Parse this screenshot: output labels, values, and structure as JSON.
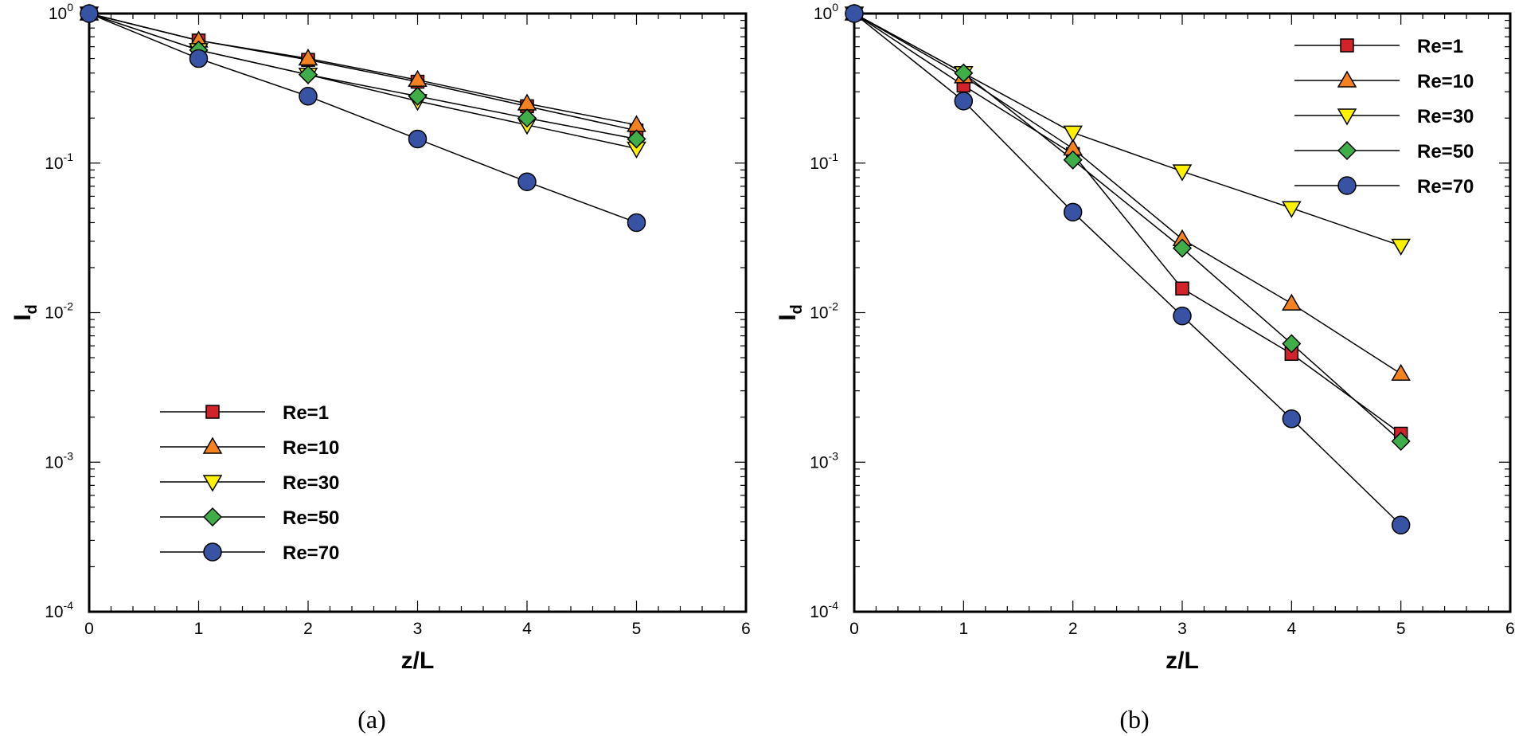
{
  "chart_data": [
    {
      "type": "line",
      "panel_label": "(a)",
      "xlabel": "z/L",
      "ylabel": "I",
      "ylabel_subscript": "d",
      "xlim": [
        0,
        6
      ],
      "ylim": [
        0.0001,
        1
      ],
      "yscale": "log",
      "x_ticks": [
        "0",
        "1",
        "2",
        "3",
        "4",
        "5",
        "6"
      ],
      "y_ticks": [
        {
          "base": "10",
          "exp": "0"
        },
        {
          "base": "10",
          "exp": "-1"
        },
        {
          "base": "10",
          "exp": "-2"
        },
        {
          "base": "10",
          "exp": "-3"
        },
        {
          "base": "10",
          "exp": "-4"
        }
      ],
      "legend_position": "bottom-left",
      "x": [
        0,
        1,
        2,
        3,
        4,
        5
      ],
      "series": [
        {
          "name": "Re=1",
          "marker": "square",
          "color": "#d2232a",
          "values": [
            1,
            0.66,
            0.49,
            0.35,
            0.24,
            0.165
          ]
        },
        {
          "name": "Re=10",
          "marker": "triangle-up",
          "color": "#f58220",
          "values": [
            1,
            0.66,
            0.5,
            0.36,
            0.25,
            0.18
          ]
        },
        {
          "name": "Re=30",
          "marker": "triangle-down",
          "color": "#fff200",
          "values": [
            1,
            0.57,
            0.39,
            0.26,
            0.18,
            0.125
          ]
        },
        {
          "name": "Re=50",
          "marker": "diamond",
          "color": "#3fae49",
          "values": [
            1,
            0.57,
            0.39,
            0.28,
            0.2,
            0.145
          ]
        },
        {
          "name": "Re=70",
          "marker": "circle",
          "color": "#3953a4",
          "values": [
            1,
            0.5,
            0.28,
            0.145,
            0.075,
            0.04
          ]
        }
      ]
    },
    {
      "type": "line",
      "panel_label": "(b)",
      "xlabel": "z/L",
      "ylabel": "I",
      "ylabel_subscript": "d",
      "xlim": [
        0,
        6
      ],
      "ylim": [
        0.0001,
        1
      ],
      "yscale": "log",
      "x_ticks": [
        "0",
        "1",
        "2",
        "3",
        "4",
        "5",
        "6"
      ],
      "y_ticks": [
        {
          "base": "10",
          "exp": "0"
        },
        {
          "base": "10",
          "exp": "-1"
        },
        {
          "base": "10",
          "exp": "-2"
        },
        {
          "base": "10",
          "exp": "-3"
        },
        {
          "base": "10",
          "exp": "-4"
        }
      ],
      "legend_position": "top-right",
      "x": [
        0,
        1,
        2,
        3,
        4,
        5
      ],
      "series": [
        {
          "name": "Re=1",
          "marker": "square",
          "color": "#d2232a",
          "values": [
            1,
            0.33,
            0.115,
            0.0145,
            0.0053,
            0.00155
          ]
        },
        {
          "name": "Re=10",
          "marker": "triangle-up",
          "color": "#f58220",
          "values": [
            1,
            0.38,
            0.125,
            0.031,
            0.0115,
            0.0039
          ]
        },
        {
          "name": "Re=30",
          "marker": "triangle-down",
          "color": "#fff200",
          "values": [
            1,
            0.4,
            0.16,
            0.088,
            0.05,
            0.028
          ]
        },
        {
          "name": "Re=50",
          "marker": "diamond",
          "color": "#3fae49",
          "values": [
            1,
            0.4,
            0.105,
            0.027,
            0.0062,
            0.00138
          ]
        },
        {
          "name": "Re=70",
          "marker": "circle",
          "color": "#3953a4",
          "values": [
            1,
            0.26,
            0.047,
            0.0095,
            0.00195,
            0.00038
          ]
        }
      ]
    }
  ]
}
